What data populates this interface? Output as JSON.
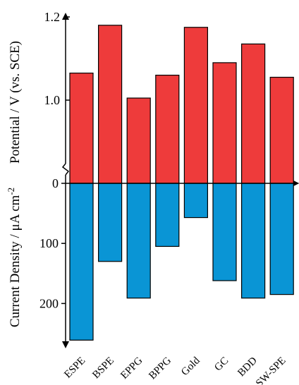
{
  "chart_data": {
    "type": "bar",
    "categories": [
      "ESPE",
      "BSPE",
      "EPPG",
      "BPPG",
      "Gold",
      "GC",
      "BDD",
      "SW-SPE"
    ],
    "series": [
      {
        "values": [
          1.065,
          1.18,
          1.005,
          1.06,
          1.175,
          1.09,
          1.135,
          1.055
        ]
      },
      {
        "values": [
          261,
          130,
          191,
          105,
          57,
          162,
          191,
          185
        ]
      }
    ],
    "colors": [
      "#ee3b3b",
      "#0a95d5"
    ],
    "potential_axis": {
      "ylabel": "Potential / V (vs. SCE)",
      "ticks": [
        1.0,
        1.2
      ],
      "tick_labels": [
        "1.0",
        "1.2"
      ],
      "ylim": [
        0.7,
        1.21
      ],
      "break_marker": true
    },
    "current_axis": {
      "ylabel_prefix": "Current Density / μA cm",
      "ylabel_superscript": "-2",
      "ticks": [
        100,
        200
      ],
      "tick_labels": [
        "100",
        "200"
      ],
      "ylim": [
        0,
        270
      ],
      "direction": "downward"
    },
    "shared_zero_label": "0",
    "grid": false,
    "legend": "none"
  }
}
